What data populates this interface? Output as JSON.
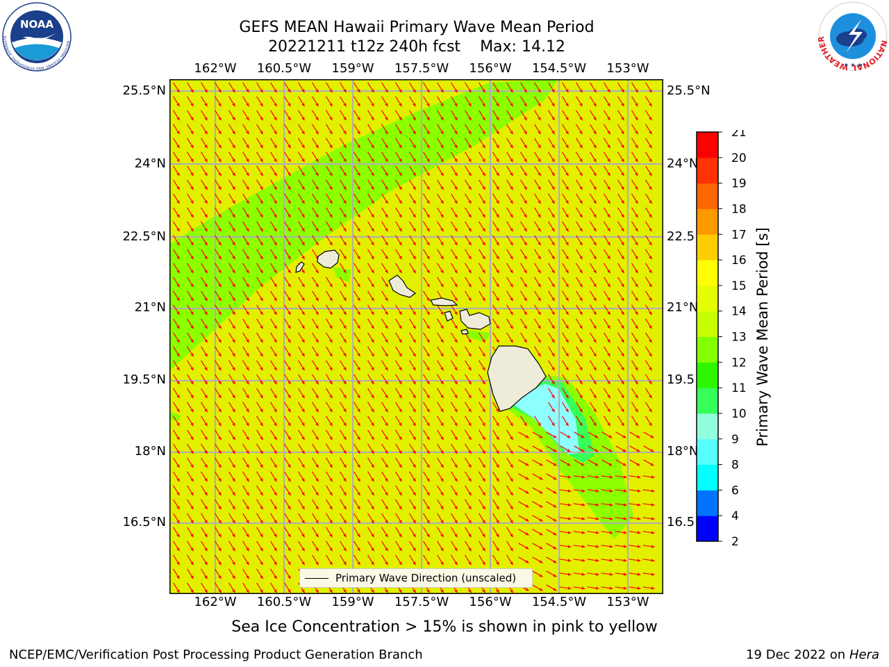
{
  "header": {
    "title": "GEFS MEAN Hawaii Primary Wave Mean Period",
    "subtitle": "20221211 t12z 240h fcst",
    "max_label": "Max: 14.12"
  },
  "logos": {
    "noaa_text": "NOAA",
    "noaa_ring": "NATIONAL OCEANIC AND ATMOSPHERIC ADMINISTRATION",
    "noaa_ring_bottom": "U.S. DEPARTMENT OF COMMERCE",
    "nws_ring": "NATIONAL WEATHER SERVICE"
  },
  "axes": {
    "lon_ticks": [
      "162°W",
      "160.5°W",
      "159°W",
      "157.5°W",
      "156°W",
      "154.5°W",
      "153°W"
    ],
    "lat_ticks_left": [
      "25.5°N",
      "24°N",
      "22.5°N",
      "21°N",
      "19.5°N",
      "18°N",
      "16.5°N"
    ],
    "lat_ticks_right": [
      "25.5°N",
      "24°N",
      "22.5",
      "21°N",
      "19.5",
      "18°N",
      "16.5"
    ]
  },
  "colorbar": {
    "label": "Primary Wave Mean Period [s]",
    "ticks": [
      "2",
      "4",
      "6",
      "8",
      "9",
      "10",
      "11",
      "12",
      "13",
      "14",
      "15",
      "16",
      "17",
      "18",
      "19",
      "20",
      "21"
    ],
    "colors": [
      "#0000ff",
      "#0073ff",
      "#00ffff",
      "#56ffff",
      "#91ffdc",
      "#36ff5a",
      "#2ef500",
      "#82ff00",
      "#c8ff00",
      "#e6ff00",
      "#ffff00",
      "#ffcc00",
      "#ff9900",
      "#ff6600",
      "#ff3300",
      "#ff0000"
    ]
  },
  "map": {
    "background_color": "#e2f000",
    "band_color": "#8cff00",
    "low_period_color": "#8effff",
    "mid_period_color": "#36ff5a",
    "land_color": "#efebd9",
    "arrow_color": "#ff0000",
    "grid_color": "#b0b0b0"
  },
  "legend": {
    "label": "Primary Wave Direction (unscaled)"
  },
  "notes": {
    "sea_ice": "Sea Ice Concentration > 15% is shown in pink to yellow"
  },
  "footer": {
    "left": "NCEP/EMC/Verification Post Processing Product Generation Branch",
    "date": "19 Dec 2022 on",
    "host": "Hera"
  }
}
